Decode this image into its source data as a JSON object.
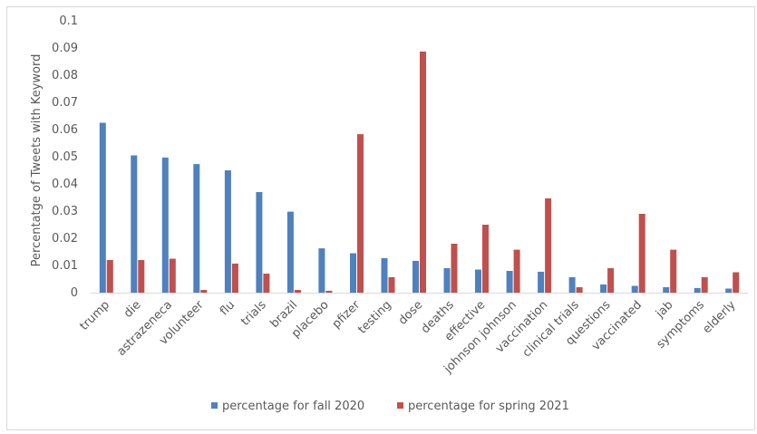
{
  "chart_data": {
    "type": "bar",
    "title": "",
    "xlabel": "",
    "ylabel": "Percentatge  of Tweets  with Keyword",
    "ylim": [
      0,
      0.1
    ],
    "yticks": [
      "0",
      "0.01",
      "0.02",
      "0.03",
      "0.04",
      "0.05",
      "0.06",
      "0.07",
      "0.08",
      "0.09",
      "0.1"
    ],
    "grid": false,
    "legend_position": "bottom",
    "categories": [
      "trump",
      "die",
      "astrazeneca",
      "volunteer",
      "flu",
      "trials",
      "brazil",
      "placebo",
      "pfizer",
      "testing",
      "dose",
      "deaths",
      "effective",
      "johnson johnson",
      "vaccination",
      "clinical trials",
      "questions",
      "vaccinated",
      "jab",
      "symptoms",
      "elderly"
    ],
    "series": [
      {
        "name": "percentage for fall 2020",
        "color": "#4f81bd",
        "values": [
          0.0625,
          0.0505,
          0.0497,
          0.0473,
          0.045,
          0.037,
          0.0298,
          0.0163,
          0.0145,
          0.0127,
          0.0117,
          0.009,
          0.0085,
          0.008,
          0.0077,
          0.0057,
          0.003,
          0.0025,
          0.002,
          0.0017,
          0.0015
        ]
      },
      {
        "name": "percentage for spring 2021",
        "color": "#c0504d",
        "values": [
          0.012,
          0.012,
          0.0125,
          0.001,
          0.0107,
          0.007,
          0.001,
          0.0007,
          0.0583,
          0.0057,
          0.0887,
          0.018,
          0.025,
          0.0158,
          0.0347,
          0.002,
          0.009,
          0.029,
          0.0158,
          0.0057,
          0.0075
        ]
      }
    ]
  }
}
